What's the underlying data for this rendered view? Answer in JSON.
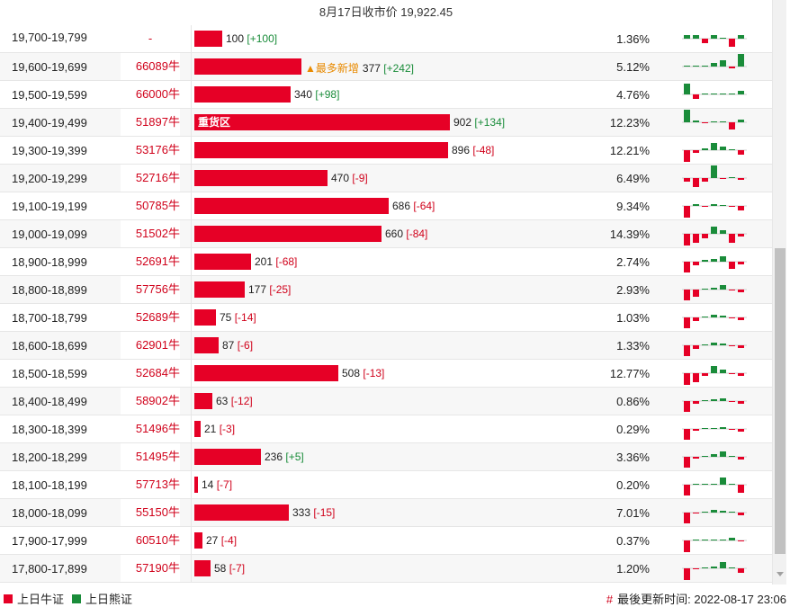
{
  "header": {
    "title": "8月17日收市价 19,922.45"
  },
  "colors": {
    "bull": "#e60026",
    "bear": "#1a8c3a",
    "bull_text": "#d0021b",
    "accent": "#e88a00"
  },
  "max_contracts": 902,
  "rows": [
    {
      "range": "19,700-19,799",
      "cbbc": "-",
      "contracts": 100,
      "change": "[+100]",
      "change_sign": "pos",
      "pct": "1.36%",
      "tag": "",
      "bar_label": "",
      "spark": [
        4,
        4,
        -5,
        4,
        0,
        -9,
        4
      ]
    },
    {
      "range": "19,600-19,699",
      "cbbc": "66089牛",
      "contracts": 377,
      "change": "[+242]",
      "change_sign": "pos",
      "pct": "5.12%",
      "tag": "▲最多新增",
      "bar_label": "",
      "spark": [
        0,
        0,
        0,
        4,
        7,
        -2,
        14
      ]
    },
    {
      "range": "19,500-19,599",
      "cbbc": "66000牛",
      "contracts": 340,
      "change": "[+98]",
      "change_sign": "pos",
      "pct": "4.76%",
      "tag": "",
      "bar_label": "",
      "spark": [
        12,
        -5,
        1,
        1,
        1,
        1,
        4
      ]
    },
    {
      "range": "19,400-19,499",
      "cbbc": "51897牛",
      "contracts": 902,
      "change": "[+134]",
      "change_sign": "pos",
      "pct": "12.23%",
      "tag": "",
      "bar_label": "重货区",
      "spark": [
        14,
        2,
        -1,
        0,
        1,
        -8,
        3
      ]
    },
    {
      "range": "19,300-19,399",
      "cbbc": "53176牛",
      "contracts": 896,
      "change": "[-48]",
      "change_sign": "neg",
      "pct": "12.21%",
      "tag": "",
      "bar_label": "",
      "spark": [
        -13,
        -3,
        2,
        8,
        4,
        1,
        -5
      ]
    },
    {
      "range": "19,200-19,299",
      "cbbc": "52716牛",
      "contracts": 470,
      "change": "[-9]",
      "change_sign": "neg",
      "pct": "6.49%",
      "tag": "",
      "bar_label": "",
      "spark": [
        -4,
        -10,
        -4,
        14,
        -1,
        1,
        -2
      ]
    },
    {
      "range": "19,100-19,199",
      "cbbc": "50785牛",
      "contracts": 686,
      "change": "[-64]",
      "change_sign": "neg",
      "pct": "9.34%",
      "tag": "",
      "bar_label": "",
      "spark": [
        -13,
        2,
        -1,
        2,
        1,
        -1,
        -5
      ]
    },
    {
      "range": "19,000-19,099",
      "cbbc": "51502牛",
      "contracts": 660,
      "change": "[-84]",
      "change_sign": "neg",
      "pct": "14.39%",
      "tag": "",
      "bar_label": "",
      "spark": [
        -13,
        -10,
        -5,
        8,
        4,
        -10,
        -3
      ]
    },
    {
      "range": "18,900-18,999",
      "cbbc": "52691牛",
      "contracts": 201,
      "change": "[-68]",
      "change_sign": "neg",
      "pct": "2.74%",
      "tag": "",
      "bar_label": "",
      "spark": [
        -12,
        -4,
        2,
        3,
        6,
        -8,
        -3
      ]
    },
    {
      "range": "18,800-18,899",
      "cbbc": "57756牛",
      "contracts": 177,
      "change": "[-25]",
      "change_sign": "neg",
      "pct": "2.93%",
      "tag": "",
      "bar_label": "",
      "spark": [
        -12,
        -8,
        0,
        2,
        5,
        -1,
        -3
      ]
    },
    {
      "range": "18,700-18,799",
      "cbbc": "52689牛",
      "contracts": 75,
      "change": "[-14]",
      "change_sign": "neg",
      "pct": "1.03%",
      "tag": "",
      "bar_label": "",
      "spark": [
        -12,
        -4,
        0,
        3,
        2,
        -1,
        -3
      ]
    },
    {
      "range": "18,600-18,699",
      "cbbc": "62901牛",
      "contracts": 87,
      "change": "[-6]",
      "change_sign": "neg",
      "pct": "1.33%",
      "tag": "",
      "bar_label": "",
      "spark": [
        -12,
        -4,
        0,
        3,
        2,
        -1,
        -3
      ]
    },
    {
      "range": "18,500-18,599",
      "cbbc": "52684牛",
      "contracts": 508,
      "change": "[-13]",
      "change_sign": "neg",
      "pct": "12.77%",
      "tag": "",
      "bar_label": "",
      "spark": [
        -13,
        -10,
        -3,
        8,
        4,
        -1,
        -3
      ]
    },
    {
      "range": "18,400-18,499",
      "cbbc": "58902牛",
      "contracts": 63,
      "change": "[-12]",
      "change_sign": "neg",
      "pct": "0.86%",
      "tag": "",
      "bar_label": "",
      "spark": [
        -12,
        -3,
        0,
        2,
        3,
        -1,
        -3
      ]
    },
    {
      "range": "18,300-18,399",
      "cbbc": "51496牛",
      "contracts": 21,
      "change": "[-3]",
      "change_sign": "neg",
      "pct": "0.29%",
      "tag": "",
      "bar_label": "",
      "spark": [
        -12,
        -2,
        0,
        1,
        2,
        -1,
        -3
      ]
    },
    {
      "range": "18,200-18,299",
      "cbbc": "51495牛",
      "contracts": 236,
      "change": "[+5]",
      "change_sign": "pos",
      "pct": "3.36%",
      "tag": "",
      "bar_label": "",
      "spark": [
        -12,
        -2,
        0,
        3,
        6,
        1,
        -3
      ]
    },
    {
      "range": "18,100-18,199",
      "cbbc": "57713牛",
      "contracts": 14,
      "change": "[-7]",
      "change_sign": "neg",
      "pct": "0.20%",
      "tag": "",
      "bar_label": "",
      "spark": [
        -12,
        0,
        0,
        0,
        8,
        1,
        -9
      ]
    },
    {
      "range": "18,000-18,099",
      "cbbc": "55150牛",
      "contracts": 333,
      "change": "[-15]",
      "change_sign": "neg",
      "pct": "7.01%",
      "tag": "",
      "bar_label": "",
      "spark": [
        -12,
        -1,
        0,
        3,
        2,
        1,
        -3
      ]
    },
    {
      "range": "17,900-17,999",
      "cbbc": "60510牛",
      "contracts": 27,
      "change": "[-4]",
      "change_sign": "neg",
      "pct": "0.37%",
      "tag": "",
      "bar_label": "",
      "spark": [
        -13,
        0,
        0,
        0,
        1,
        3,
        -1
      ]
    },
    {
      "range": "17,800-17,899",
      "cbbc": "57190牛",
      "contracts": 58,
      "change": "[-7]",
      "change_sign": "neg",
      "pct": "1.20%",
      "tag": "",
      "bar_label": "",
      "spark": [
        -13,
        -1,
        0,
        2,
        7,
        1,
        -5
      ]
    }
  ],
  "footer": {
    "legend_bull": "上日牛证",
    "legend_bear": "上日熊证",
    "updated": "最後更新时间: 2022-08-17 23:06",
    "updated_mark": "#"
  }
}
